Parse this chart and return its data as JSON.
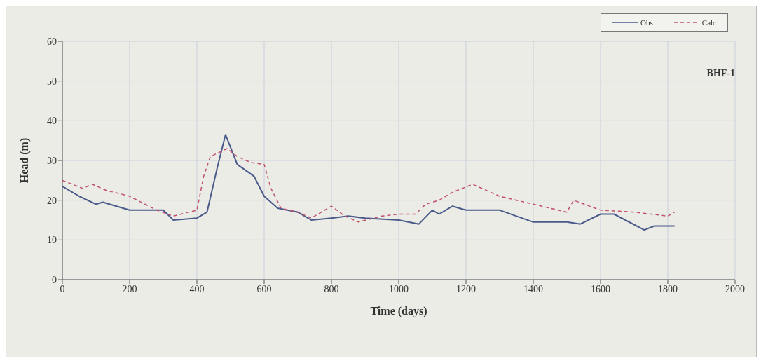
{
  "chart_data": {
    "type": "line",
    "xlabel": "Time (days)",
    "ylabel": "Head (m)",
    "annotations": [
      "BHF-1"
    ],
    "xlim": [
      0,
      2000
    ],
    "xticks": [
      0,
      200,
      400,
      600,
      800,
      1000,
      1200,
      1400,
      1600,
      1800,
      2000
    ],
    "ylim": [
      0,
      60
    ],
    "yticks": [
      0,
      10,
      20,
      30,
      40,
      50,
      60
    ],
    "grid": true,
    "legend": "top right",
    "marker": "none",
    "series": [
      {
        "name": "Obs",
        "color": "#4a5a8a",
        "line_style": "solid",
        "x": [
          0,
          50,
          100,
          120,
          200,
          300,
          330,
          400,
          430,
          460,
          485,
          520,
          570,
          600,
          640,
          700,
          740,
          800,
          850,
          900,
          1000,
          1060,
          1100,
          1120,
          1160,
          1200,
          1300,
          1400,
          1500,
          1540,
          1600,
          1640,
          1730,
          1760,
          1820
        ],
        "values": [
          23.5,
          21,
          19,
          19.5,
          17.5,
          17.5,
          15,
          15.5,
          17,
          28,
          36.5,
          29,
          26,
          21,
          18,
          17,
          15,
          15.5,
          16,
          15.5,
          15,
          14,
          17.5,
          16.5,
          18.5,
          17.5,
          17.5,
          14.5,
          14.5,
          14,
          16.5,
          16.5,
          12.5,
          13.5,
          13.5
        ]
      },
      {
        "name": "Calc",
        "color": "#c05070",
        "line_style": "dashed",
        "x": [
          0,
          60,
          90,
          130,
          200,
          280,
          330,
          400,
          420,
          440,
          490,
          520,
          560,
          600,
          620,
          650,
          700,
          740,
          800,
          840,
          880,
          950,
          1000,
          1050,
          1080,
          1120,
          1160,
          1220,
          1300,
          1400,
          1500,
          1520,
          1600,
          1700,
          1800,
          1820
        ],
        "values": [
          25,
          23,
          24,
          22.5,
          21,
          17.5,
          16,
          17.5,
          26,
          31,
          33,
          31,
          29.5,
          29,
          23,
          18,
          17,
          15.5,
          18.5,
          16,
          14.5,
          16,
          16.5,
          16.5,
          19,
          20,
          22,
          24,
          21,
          19,
          17,
          20,
          17.5,
          17,
          16,
          17
        ]
      }
    ]
  }
}
